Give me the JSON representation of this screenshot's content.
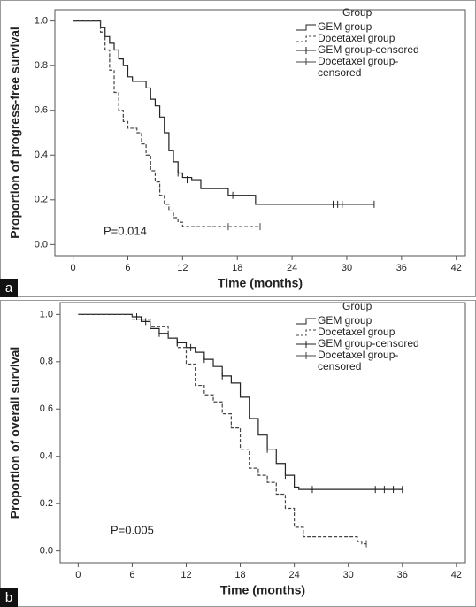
{
  "chart_data": [
    {
      "type": "step",
      "panel_label": "a",
      "xlabel": "Time (months)",
      "ylabel": "Proportion of progress-free survival",
      "legend_title": "Group",
      "annotation": "P=0.014",
      "xlim": [
        -2,
        43
      ],
      "xticks": [
        0,
        6,
        12,
        18,
        24,
        30,
        36,
        42
      ],
      "ylim": [
        -0.05,
        1.05
      ],
      "yticks": [
        {
          "value": 0,
          "label": "0.0"
        },
        0.2,
        0.4,
        0.6,
        0.8,
        {
          "value": 1,
          "label": "1.0"
        }
      ],
      "series": [
        {
          "name": "GEM group",
          "color": "#222222",
          "style": "solid",
          "x": [
            0,
            3,
            3.5,
            4,
            4.5,
            5,
            5.5,
            6,
            6.5,
            8,
            8.5,
            9,
            9.5,
            10,
            10.5,
            11,
            11.5,
            12,
            13,
            14,
            17,
            20,
            33
          ],
          "values": [
            1,
            0.97,
            0.93,
            0.9,
            0.87,
            0.83,
            0.8,
            0.75,
            0.73,
            0.7,
            0.65,
            0.62,
            0.57,
            0.5,
            0.42,
            0.37,
            0.32,
            0.3,
            0.29,
            0.25,
            0.22,
            0.18,
            0.18
          ]
        },
        {
          "name": "Docetaxel group",
          "color": "#444444",
          "style": "dashed",
          "x": [
            0,
            3,
            3.5,
            4,
            4.5,
            5,
            5.5,
            6,
            7,
            7.5,
            8,
            8.5,
            9,
            9.5,
            10,
            10.5,
            11,
            11.5,
            12,
            20.5
          ],
          "values": [
            1,
            0.95,
            0.87,
            0.78,
            0.68,
            0.6,
            0.55,
            0.52,
            0.5,
            0.45,
            0.4,
            0.33,
            0.28,
            0.22,
            0.18,
            0.15,
            0.12,
            0.1,
            0.08,
            0.08
          ]
        },
        {
          "name": "GEM group-censored",
          "color": "#222222",
          "style": "censor",
          "x": [
            11.5,
            12.5,
            17.5,
            28.5,
            29,
            29.5,
            33
          ],
          "values": [
            0.32,
            0.29,
            0.22,
            0.18,
            0.18,
            0.18,
            0.18
          ]
        },
        {
          "name": "Docetaxel group-censored",
          "color": "#444444",
          "style": "censor",
          "x": [
            17,
            20.5
          ],
          "values": [
            0.08,
            0.08
          ]
        }
      ]
    },
    {
      "type": "step",
      "panel_label": "b",
      "xlabel": "Time (months)",
      "ylabel": "Proportion of overall survival",
      "legend_title": "Group",
      "annotation": "P=0.005",
      "xlim": [
        -2,
        43
      ],
      "xticks": [
        0,
        6,
        12,
        18,
        24,
        30,
        36,
        42
      ],
      "ylim": [
        -0.05,
        1.05
      ],
      "yticks": [
        {
          "value": 0,
          "label": "0.0"
        },
        0.2,
        0.4,
        0.6,
        0.8,
        {
          "value": 1,
          "label": "1.0"
        }
      ],
      "series": [
        {
          "name": "GEM group",
          "color": "#222222",
          "style": "solid",
          "x": [
            0,
            6,
            7,
            8,
            9,
            10,
            11,
            12,
            13,
            14,
            15,
            16,
            17,
            18,
            19,
            20,
            21,
            22,
            23,
            24,
            24.5,
            36
          ],
          "values": [
            1,
            0.99,
            0.97,
            0.94,
            0.92,
            0.9,
            0.88,
            0.86,
            0.84,
            0.81,
            0.78,
            0.74,
            0.71,
            0.65,
            0.56,
            0.49,
            0.43,
            0.37,
            0.32,
            0.27,
            0.26,
            0.26
          ]
        },
        {
          "name": "Docetaxel group",
          "color": "#444444",
          "style": "dashed",
          "x": [
            0,
            6,
            8,
            10,
            11,
            12,
            13,
            14,
            15,
            16,
            17,
            18,
            19,
            20,
            21,
            22,
            23,
            24,
            25,
            31,
            31.5,
            32
          ],
          "values": [
            1,
            0.98,
            0.95,
            0.9,
            0.86,
            0.79,
            0.7,
            0.66,
            0.63,
            0.58,
            0.52,
            0.43,
            0.35,
            0.32,
            0.29,
            0.24,
            0.18,
            0.1,
            0.06,
            0.04,
            0.03,
            0.03
          ]
        },
        {
          "name": "GEM group-censored",
          "color": "#222222",
          "style": "censor",
          "x": [
            6.5,
            7.5,
            9,
            11,
            12.5,
            14,
            16,
            21,
            23,
            26,
            33,
            34,
            35,
            36
          ],
          "values": [
            0.99,
            0.97,
            0.92,
            0.88,
            0.86,
            0.81,
            0.74,
            0.43,
            0.32,
            0.26,
            0.26,
            0.26,
            0.26,
            0.26
          ]
        },
        {
          "name": "Docetaxel group-censored",
          "color": "#444444",
          "style": "censor",
          "x": [
            32
          ],
          "values": [
            0.03
          ]
        }
      ]
    }
  ]
}
